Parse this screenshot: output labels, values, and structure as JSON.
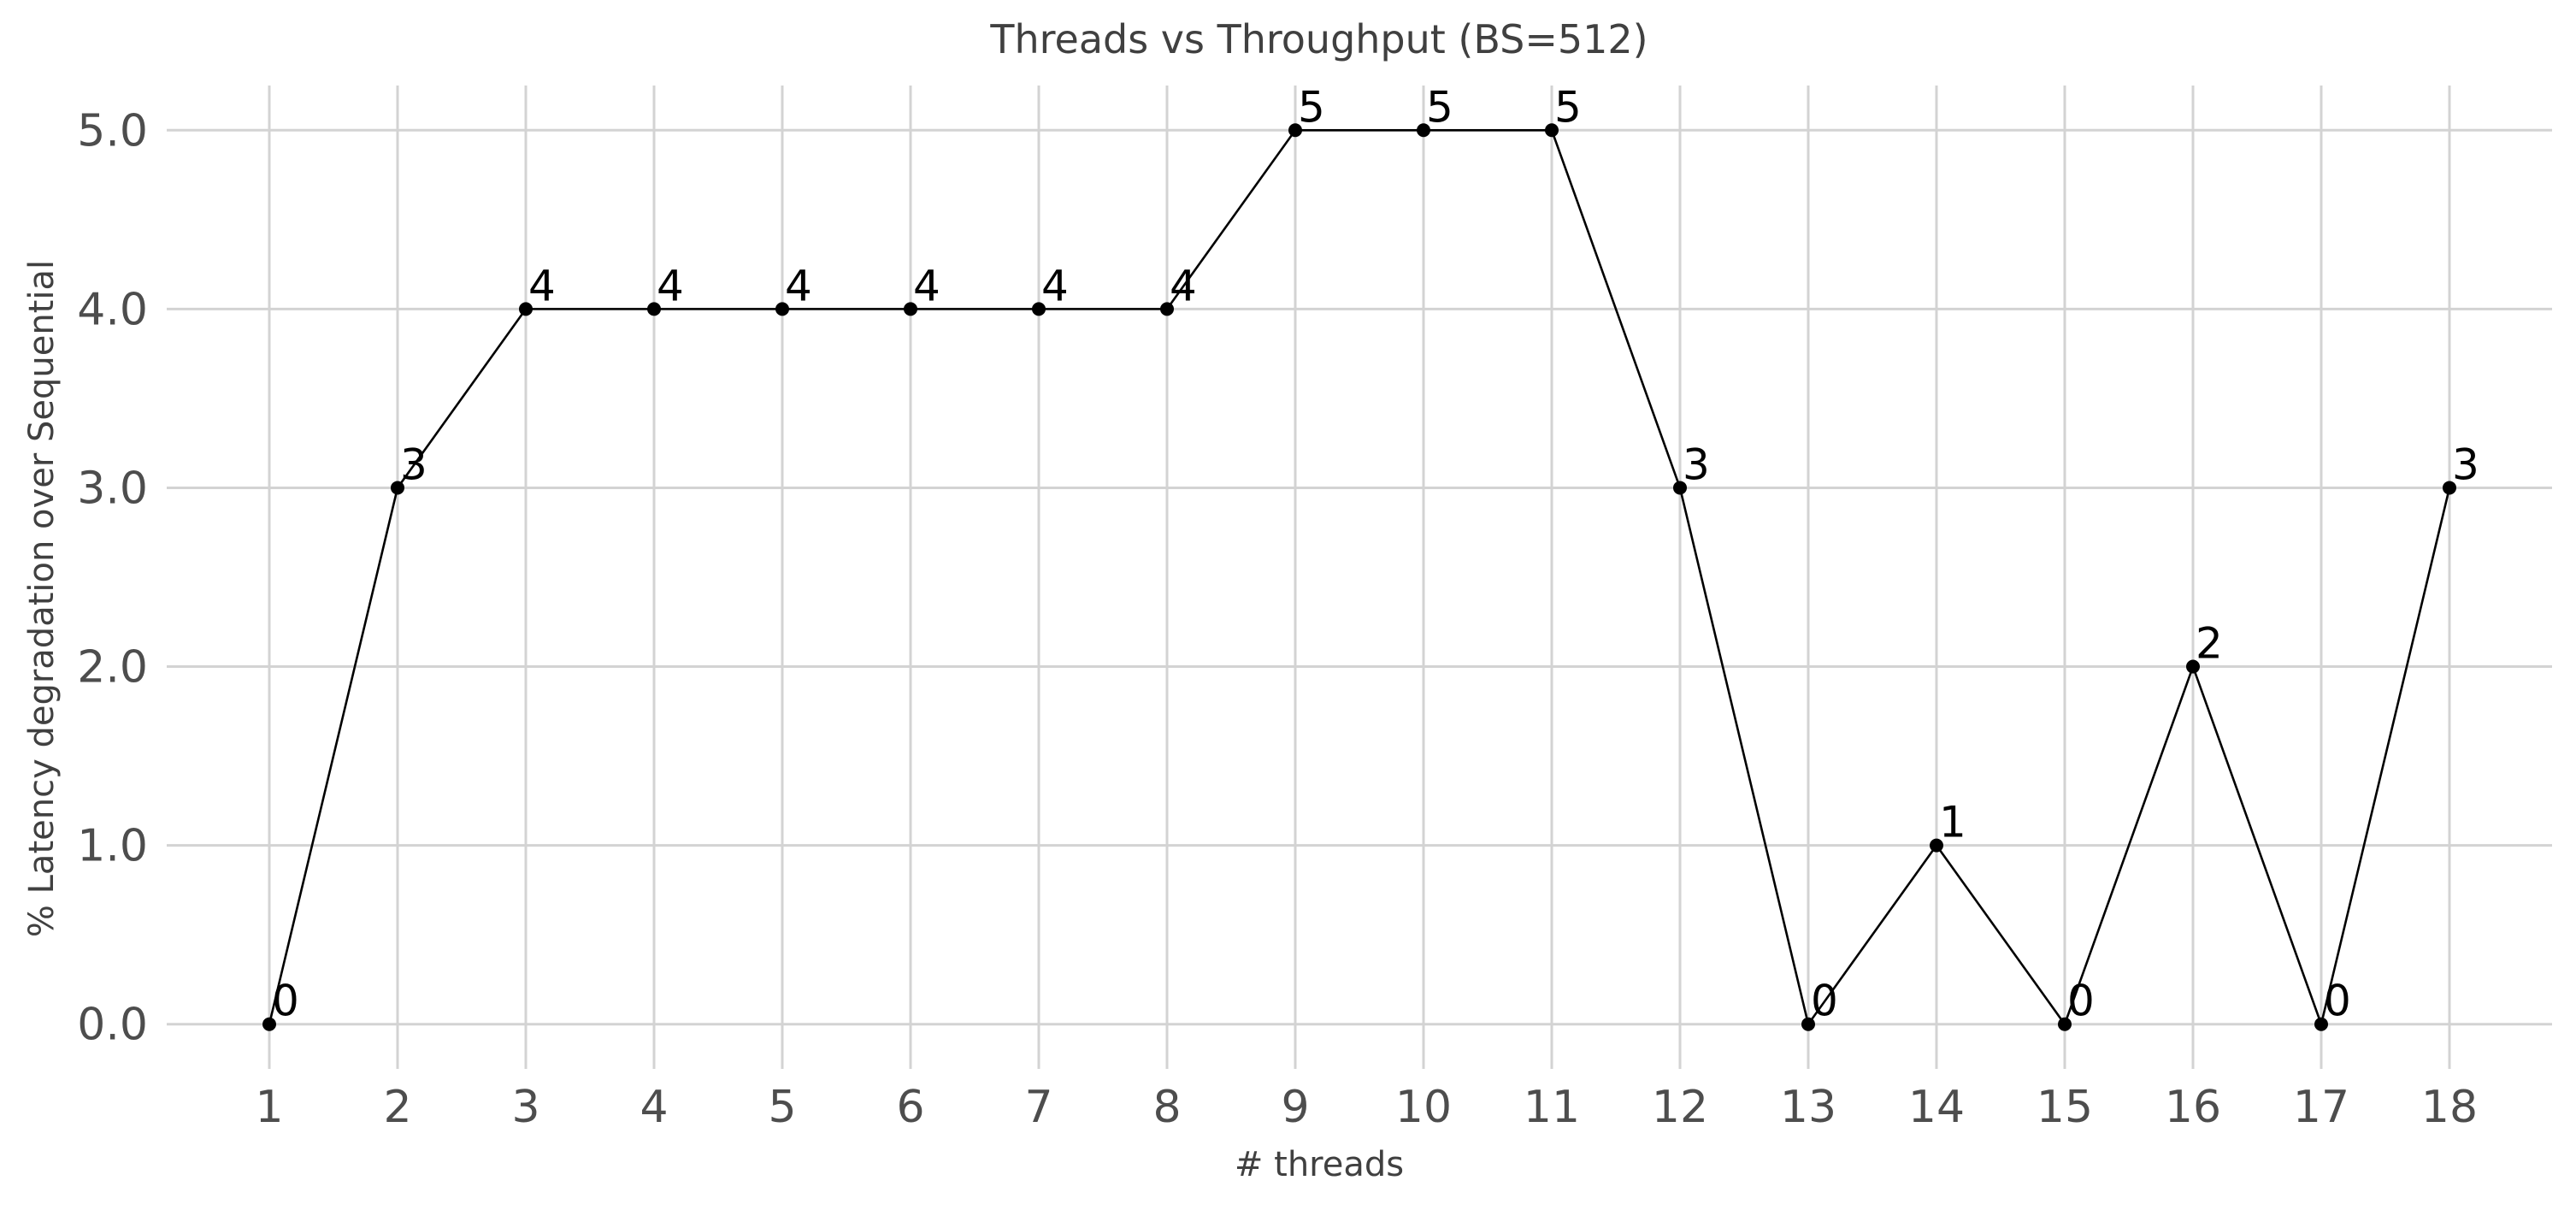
{
  "chart_data": {
    "type": "line",
    "title": "Threads vs Throughput (BS=512)",
    "xlabel": "# threads",
    "ylabel": "% Latency degradation over Sequential",
    "x": [
      1,
      2,
      3,
      4,
      5,
      6,
      7,
      8,
      9,
      10,
      11,
      12,
      13,
      14,
      15,
      16,
      17,
      18
    ],
    "x_tick_labels": [
      "1",
      "2",
      "3",
      "4",
      "5",
      "6",
      "7",
      "8",
      "9",
      "10",
      "11",
      "12",
      "13",
      "14",
      "15",
      "16",
      "17",
      "18"
    ],
    "y_ticks": [
      0,
      1,
      2,
      3,
      4,
      5
    ],
    "y_tick_labels": [
      "0.0",
      "1.0",
      "2.0",
      "3.0",
      "4.0",
      "5.0"
    ],
    "series": [
      {
        "values": [
          0,
          3,
          4,
          4,
          4,
          4,
          4,
          4,
          5,
          5,
          5,
          3,
          0,
          1,
          0,
          2,
          0,
          3
        ],
        "data_labels": [
          "0",
          "3",
          "4",
          "4",
          "4",
          "4",
          "4",
          "4",
          "5",
          "5",
          "5",
          "3",
          "0",
          "1",
          "0",
          "2",
          "0",
          "3"
        ]
      }
    ],
    "xlim": [
      0.2,
      18.8
    ],
    "ylim": [
      -0.25,
      5.25
    ],
    "grid": true,
    "legend": "none",
    "line_color": "#000000",
    "grid_color": "#d3d3d3"
  }
}
